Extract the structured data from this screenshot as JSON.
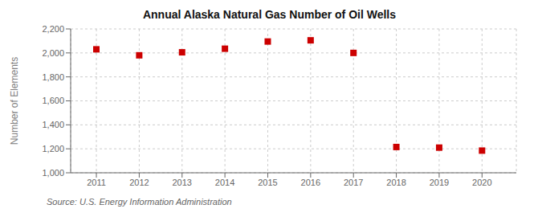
{
  "chart_data": {
    "type": "scatter",
    "title": "Annual Alaska Natural Gas Number of Oil Wells",
    "ylabel": "Number of Elements",
    "annotations": [
      "Source: U.S. Energy Information Administration"
    ],
    "x": [
      2011,
      2012,
      2013,
      2014,
      2015,
      2016,
      2017,
      2018,
      2019,
      2020
    ],
    "values": [
      2030,
      1980,
      2005,
      2035,
      2095,
      2105,
      2000,
      1215,
      1210,
      1185
    ],
    "xlim": [
      2010.4,
      2020.8
    ],
    "xticks": [
      2011,
      2012,
      2013,
      2014,
      2015,
      2016,
      2017,
      2018,
      2019,
      2020
    ],
    "ylim": [
      1000,
      2200
    ],
    "yticks": [
      {
        "value": 1000,
        "label": "1,000"
      },
      {
        "value": 1200,
        "label": "1,200"
      },
      {
        "value": 1400,
        "label": "1,400"
      },
      {
        "value": 1600,
        "label": "1,600"
      },
      {
        "value": 1800,
        "label": "1,800"
      },
      {
        "value": 2000,
        "label": "2,000"
      },
      {
        "value": 2200,
        "label": "2,200"
      }
    ],
    "color": "#cc0000",
    "marker": "square",
    "grid": true
  }
}
